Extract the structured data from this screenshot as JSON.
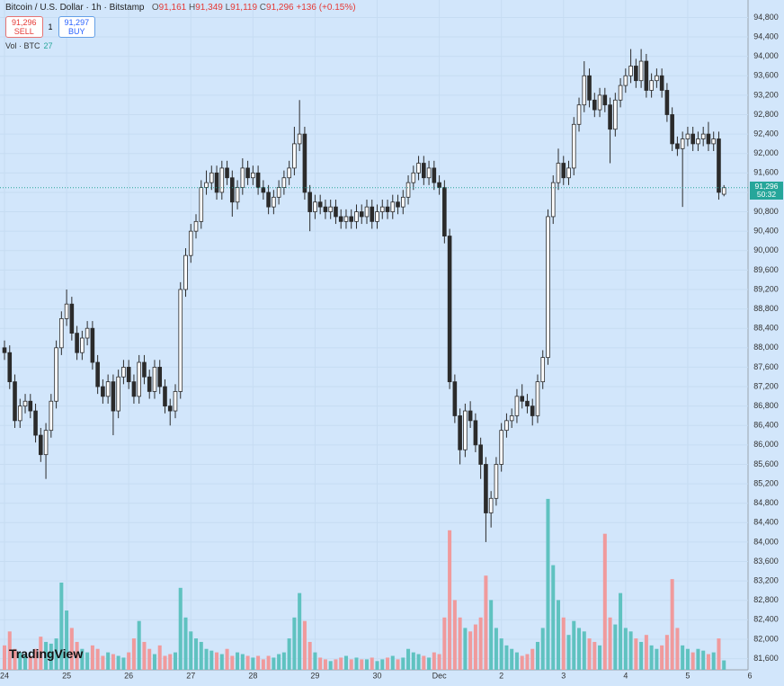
{
  "chart_data": {
    "type": "candlestick",
    "header": {
      "symbol": "Bitcoin / U.S. Dollar · 1h · Bitstamp",
      "o_label": "O",
      "o": "91,161",
      "h_label": "H",
      "h": "91,349",
      "l_label": "L",
      "l": "91,119",
      "c_label": "C",
      "c": "91,296",
      "change": "+136 (+0.15%)"
    },
    "trade": {
      "sell_price": "91,296",
      "sell": "SELL",
      "spread": "1",
      "buy_price": "91,297",
      "buy": "BUY"
    },
    "volume_label": "Vol · BTC",
    "volume_last": "27",
    "price_tag": {
      "price": "91,296",
      "countdown": "50:32"
    },
    "logo": "TradingView",
    "x": [
      0,
      2,
      4,
      6,
      8,
      10,
      12,
      14,
      16,
      18,
      20,
      22,
      24,
      26,
      28,
      30,
      32,
      34,
      36,
      38,
      40,
      42,
      44,
      46,
      48,
      50,
      52,
      54,
      56,
      58,
      60,
      62,
      64,
      66,
      68,
      70,
      72,
      74,
      76,
      78,
      80,
      82,
      84,
      86,
      88,
      90,
      92,
      94,
      96,
      98,
      100,
      102,
      104,
      106,
      108,
      110,
      112,
      114,
      116,
      118,
      120,
      122,
      124,
      126,
      128,
      130,
      132,
      134,
      136,
      138,
      140,
      142,
      144,
      146,
      148,
      150,
      152,
      154,
      156,
      158,
      160,
      162,
      164,
      166,
      168,
      170,
      172,
      174,
      176,
      178,
      180,
      182,
      184,
      186,
      188,
      190,
      192,
      194,
      196,
      198,
      200,
      202,
      204,
      206,
      208,
      210,
      212,
      214,
      216,
      218,
      220,
      222,
      224,
      226,
      228,
      230,
      232,
      234,
      236,
      238,
      240,
      242,
      244,
      246,
      248,
      250,
      252,
      254,
      256,
      258,
      260,
      262,
      264,
      266,
      268,
      270,
      272,
      274,
      276,
      278
    ],
    "open": [
      88000,
      87900,
      87300,
      86500,
      86800,
      86900,
      86700,
      86200,
      85800,
      86300,
      86900,
      88000,
      88600,
      88900,
      88300,
      87900,
      88200,
      88400,
      87700,
      87200,
      87000,
      87300,
      86700,
      87400,
      87600,
      87300,
      87000,
      87700,
      87400,
      87100,
      87600,
      87200,
      86800,
      86700,
      87100,
      89200,
      89900,
      90400,
      90600,
      91300,
      91400,
      91600,
      91200,
      91700,
      91500,
      91000,
      91300,
      91700,
      91500,
      91600,
      91300,
      91200,
      90900,
      91100,
      91300,
      91500,
      91700,
      92200,
      92400,
      91200,
      90800,
      91000,
      90900,
      90800,
      90900,
      90700,
      90600,
      90700,
      90600,
      90800,
      90700,
      90900,
      90600,
      90800,
      90900,
      90800,
      91000,
      90900,
      91100,
      91400,
      91600,
      91800,
      91500,
      91700,
      91400,
      91300,
      90300,
      87300,
      86600,
      85900,
      86700,
      86500,
      86000,
      85600,
      84600,
      84900,
      85600,
      86300,
      86500,
      86600,
      87000,
      86900,
      86800,
      86600,
      87300,
      87800,
      90700,
      91400,
      91800,
      91500,
      91700,
      92600,
      93000,
      93600,
      93100,
      92900,
      93200,
      93000,
      92500,
      93100,
      93400,
      93600,
      93800,
      93500,
      93900,
      93300,
      93500,
      93600,
      93300,
      92800,
      92200,
      92100,
      92300,
      92400,
      92200,
      92300,
      92400,
      92200,
      92300,
      91161
    ],
    "high": [
      88150,
      88050,
      87450,
      86950,
      87050,
      87050,
      86850,
      86350,
      86450,
      87050,
      88150,
      88750,
      89200,
      89050,
      88450,
      88350,
      88550,
      88550,
      87850,
      87350,
      87450,
      87450,
      87550,
      87750,
      87750,
      87450,
      87850,
      87850,
      87550,
      87750,
      87750,
      87350,
      86950,
      87250,
      89350,
      90050,
      90550,
      90750,
      91450,
      91650,
      91750,
      91750,
      91850,
      91850,
      91650,
      91450,
      91900,
      91850,
      91750,
      91750,
      91450,
      91350,
      91250,
      91450,
      91650,
      91850,
      92550,
      93100,
      92550,
      91350,
      91150,
      91150,
      91050,
      91050,
      91050,
      90850,
      90850,
      90850,
      90950,
      90950,
      91050,
      91050,
      90950,
      91050,
      91050,
      91150,
      91150,
      91250,
      91550,
      91750,
      91950,
      91950,
      91850,
      91850,
      91550,
      91450,
      90450,
      87450,
      86750,
      86850,
      86900,
      86650,
      86150,
      85750,
      85050,
      85750,
      86450,
      86650,
      86750,
      87150,
      87250,
      87050,
      86950,
      87450,
      87950,
      90850,
      91550,
      92100,
      91950,
      91850,
      92750,
      93150,
      93900,
      93750,
      93250,
      93350,
      93350,
      93150,
      93250,
      93550,
      93750,
      94150,
      93950,
      94150,
      94050,
      93650,
      93750,
      93750,
      93450,
      92950,
      92350,
      92450,
      92550,
      92550,
      92450,
      92550,
      92650,
      92450,
      92450,
      91349
    ],
    "low": [
      87750,
      87150,
      86350,
      86350,
      86650,
      86550,
      86050,
      85650,
      85300,
      86150,
      86750,
      87850,
      88450,
      88150,
      87750,
      87750,
      88050,
      87550,
      87050,
      86850,
      86850,
      86200,
      86550,
      87250,
      87150,
      86850,
      86850,
      87250,
      86950,
      86950,
      87050,
      86650,
      86400,
      86550,
      86950,
      89050,
      89750,
      90250,
      90450,
      91150,
      91250,
      91050,
      91050,
      91350,
      90700,
      90850,
      91150,
      91350,
      91350,
      91150,
      91050,
      90750,
      90750,
      90950,
      91150,
      91350,
      91550,
      92050,
      91050,
      90400,
      90650,
      90750,
      90650,
      90650,
      90550,
      90450,
      90450,
      90450,
      90450,
      90550,
      90550,
      90450,
      90450,
      90650,
      90650,
      90650,
      90750,
      90750,
      90950,
      91250,
      91450,
      91350,
      91350,
      91250,
      91150,
      90150,
      87150,
      86450,
      85600,
      85750,
      86350,
      85850,
      85300,
      84000,
      84300,
      84750,
      85450,
      86150,
      86350,
      86450,
      86750,
      86650,
      86400,
      86450,
      87150,
      87650,
      90550,
      91250,
      91350,
      91350,
      91550,
      92450,
      92850,
      92950,
      92750,
      92750,
      92850,
      91800,
      92350,
      92950,
      93250,
      93450,
      93350,
      93350,
      93150,
      93150,
      93350,
      93150,
      92650,
      92050,
      91950,
      90900,
      92150,
      92050,
      92050,
      92150,
      92050,
      92050,
      91050,
      91119
    ],
    "close": [
      87900,
      87300,
      86500,
      86800,
      86900,
      86700,
      86200,
      85800,
      86300,
      86900,
      88000,
      88600,
      88900,
      88300,
      87900,
      88200,
      88400,
      87700,
      87200,
      87000,
      87300,
      86700,
      87400,
      87600,
      87300,
      87000,
      87700,
      87400,
      87100,
      87600,
      87200,
      86800,
      86700,
      87100,
      89200,
      89900,
      90400,
      90600,
      91300,
      91400,
      91600,
      91200,
      91700,
      91500,
      91000,
      91300,
      91700,
      91500,
      91600,
      91300,
      91200,
      90900,
      91100,
      91300,
      91500,
      91700,
      92200,
      92400,
      91200,
      90800,
      91000,
      90900,
      90800,
      90900,
      90700,
      90600,
      90700,
      90600,
      90800,
      90700,
      90900,
      90600,
      90800,
      90900,
      90800,
      91000,
      90900,
      91100,
      91400,
      91600,
      91800,
      91500,
      91700,
      91400,
      91300,
      90300,
      87300,
      86600,
      85900,
      86700,
      86500,
      86000,
      85600,
      84600,
      84900,
      85600,
      86300,
      86500,
      86600,
      87000,
      86900,
      86800,
      86600,
      87300,
      87800,
      90700,
      91400,
      91800,
      91500,
      91700,
      92600,
      93000,
      93600,
      93100,
      92900,
      93200,
      93000,
      92500,
      93100,
      93400,
      93600,
      93800,
      93500,
      93900,
      93300,
      93500,
      93600,
      93300,
      92800,
      92200,
      92100,
      92300,
      92400,
      92200,
      92300,
      92400,
      92200,
      92300,
      91200,
      91296
    ],
    "volume": [
      70,
      110,
      60,
      50,
      45,
      40,
      60,
      95,
      80,
      75,
      90,
      250,
      170,
      120,
      80,
      60,
      50,
      70,
      60,
      40,
      50,
      45,
      40,
      35,
      50,
      90,
      140,
      80,
      60,
      45,
      70,
      40,
      45,
      50,
      235,
      150,
      110,
      90,
      80,
      60,
      55,
      50,
      45,
      60,
      40,
      50,
      45,
      40,
      35,
      40,
      30,
      40,
      35,
      45,
      50,
      90,
      150,
      220,
      140,
      80,
      50,
      35,
      30,
      25,
      30,
      35,
      40,
      30,
      35,
      30,
      30,
      35,
      25,
      30,
      35,
      40,
      30,
      35,
      60,
      50,
      45,
      40,
      35,
      50,
      45,
      150,
      400,
      200,
      150,
      120,
      110,
      130,
      150,
      270,
      200,
      120,
      90,
      70,
      60,
      50,
      40,
      45,
      60,
      80,
      120,
      490,
      300,
      200,
      150,
      100,
      140,
      120,
      110,
      90,
      80,
      70,
      390,
      150,
      130,
      220,
      120,
      110,
      90,
      80,
      100,
      70,
      60,
      70,
      100,
      260,
      120,
      70,
      60,
      50,
      60,
      55,
      45,
      50,
      90,
      27
    ],
    "xlim": [
      -1.74,
      301.2
    ],
    "xticks": [
      {
        "value": 0,
        "label": "24"
      },
      {
        "value": 24,
        "label": "25"
      },
      {
        "value": 48,
        "label": "26"
      },
      {
        "value": 72,
        "label": "27"
      },
      {
        "value": 96,
        "label": "28"
      },
      {
        "value": 120,
        "label": "29"
      },
      {
        "value": 144,
        "label": "30"
      },
      {
        "value": 168,
        "label": "Dec"
      },
      {
        "value": 192,
        "label": "2"
      },
      {
        "value": 216,
        "label": "3"
      },
      {
        "value": 240,
        "label": "4"
      },
      {
        "value": 264,
        "label": "5"
      },
      {
        "value": 288,
        "label": "6"
      }
    ],
    "ylim": [
      81370,
      95160
    ],
    "yticks": [
      {
        "value": 81600,
        "label": "81,600"
      },
      {
        "value": 82000,
        "label": "82,000"
      },
      {
        "value": 82400,
        "label": "82,400"
      },
      {
        "value": 82800,
        "label": "82,800"
      },
      {
        "value": 83200,
        "label": "83,200"
      },
      {
        "value": 83600,
        "label": "83,600"
      },
      {
        "value": 84000,
        "label": "84,000"
      },
      {
        "value": 84400,
        "label": "84,400"
      },
      {
        "value": 84800,
        "label": "84,800"
      },
      {
        "value": 85200,
        "label": "85,200"
      },
      {
        "value": 85600,
        "label": "85,600"
      },
      {
        "value": 86000,
        "label": "86,000"
      },
      {
        "value": 86400,
        "label": "86,400"
      },
      {
        "value": 86800,
        "label": "86,800"
      },
      {
        "value": 87200,
        "label": "87,200"
      },
      {
        "value": 87600,
        "label": "87,600"
      },
      {
        "value": 88000,
        "label": "88,000"
      },
      {
        "value": 88400,
        "label": "88,400"
      },
      {
        "value": 88800,
        "label": "88,800"
      },
      {
        "value": 89200,
        "label": "89,200"
      },
      {
        "value": 89600,
        "label": "89,600"
      },
      {
        "value": 90000,
        "label": "90,000"
      },
      {
        "value": 90400,
        "label": "90,400"
      },
      {
        "value": 90800,
        "label": "90,800"
      },
      {
        "value": 91200,
        "label": "91,200"
      },
      {
        "value": 91600,
        "label": "91,600"
      },
      {
        "value": 92000,
        "label": "92,000"
      },
      {
        "value": 92400,
        "label": "92,400"
      },
      {
        "value": 92800,
        "label": "92,800"
      },
      {
        "value": 93200,
        "label": "93,200"
      },
      {
        "value": 93600,
        "label": "93,600"
      },
      {
        "value": 94000,
        "label": "94,000"
      },
      {
        "value": 94400,
        "label": "94,400"
      },
      {
        "value": 94800,
        "label": "94,800"
      }
    ],
    "volume_ylim": [
      0,
      1000
    ],
    "grid": true,
    "background": "#d2e6fb",
    "up_color": "#ffffff",
    "down_color": "#2b2b2b",
    "wick_color": "#2b2b2b",
    "volume_up_color": "#5fc2c0",
    "volume_down_color": "#f09a9c",
    "last_price_color": "#26a69a"
  }
}
